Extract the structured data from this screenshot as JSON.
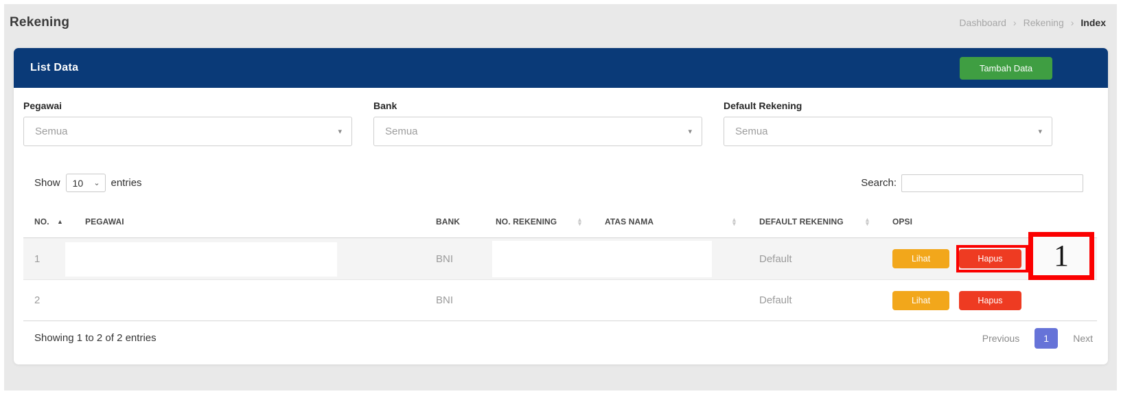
{
  "header": {
    "title": "Rekening"
  },
  "breadcrumb": {
    "items": [
      "Dashboard",
      "Rekening",
      "Index"
    ],
    "separator": "›"
  },
  "card": {
    "title": "List Data",
    "add_button_label": "Tambah Data"
  },
  "filters": {
    "pegawai": {
      "label": "Pegawai",
      "value": "Semua"
    },
    "bank": {
      "label": "Bank",
      "value": "Semua"
    },
    "default_rekening": {
      "label": "Default Rekening",
      "value": "Semua"
    }
  },
  "controls": {
    "show_label": "Show",
    "page_length": "10",
    "entries_label": "entries",
    "search_label": "Search:",
    "search_value": ""
  },
  "table": {
    "headers": {
      "no": "NO.",
      "pegawai": "PEGAWAI",
      "bank": "BANK",
      "no_rekening": "NO. REKENING",
      "atas_nama": "ATAS NAMA",
      "default_rekening": "DEFAULT REKENING",
      "opsi": "OPSI"
    },
    "rows": [
      {
        "no": "1",
        "pegawai": "",
        "bank": "BNI",
        "no_rekening": "",
        "atas_nama": "",
        "default_rekening": "Default",
        "lihat_label": "Lihat",
        "hapus_label": "Hapus"
      },
      {
        "no": "2",
        "pegawai": "",
        "bank": "BNI",
        "no_rekening": "",
        "atas_nama": "",
        "default_rekening": "Default",
        "lihat_label": "Lihat",
        "hapus_label": "Hapus"
      }
    ]
  },
  "footer": {
    "info": "Showing 1 to 2 of 2 entries",
    "previous_label": "Previous",
    "current_page": "1",
    "next_label": "Next"
  },
  "annotation": {
    "label": "1"
  },
  "colors": {
    "page-bg": "#e9e9e9",
    "card-header-bg": "#0a3a78",
    "add-button-bg": "#3f9e42",
    "lihat-bg": "#f2a71b",
    "hapus-bg": "#ee3b22",
    "active-page-bg": "#6673d8",
    "annotation-red": "#fb0000"
  }
}
